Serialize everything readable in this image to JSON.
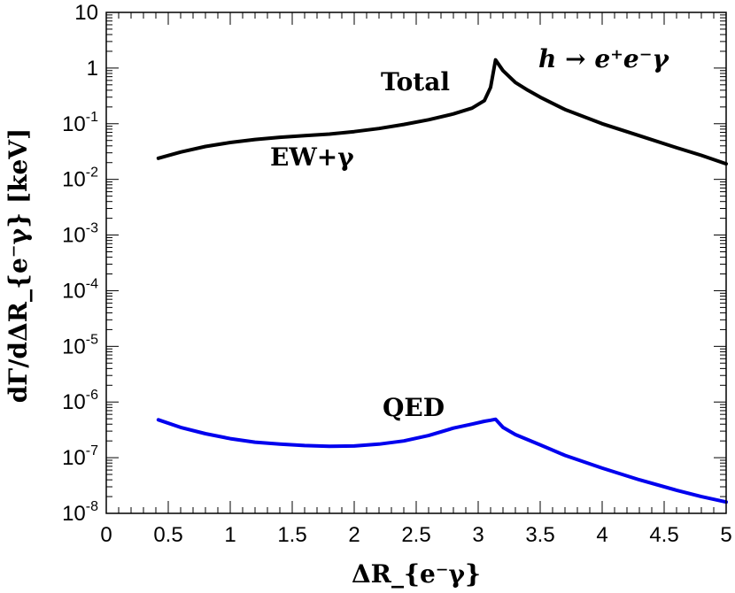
{
  "chart_data": {
    "type": "line",
    "xlabel": "ΔR_{e⁻γ}",
    "ylabel": "dΓ/dΔR_{e⁻γ} [keV]",
    "xlim": [
      0,
      5
    ],
    "ylim": [
      1e-08,
      10
    ],
    "yscale": "log",
    "grid": false,
    "x_ticks": [
      "0",
      "0.5",
      "1",
      "1.5",
      "2",
      "2.5",
      "3",
      "3.5",
      "4",
      "4.5",
      "5"
    ],
    "y_ticks": [
      {
        "base": "10",
        "exp": "-8",
        "value": 1e-08
      },
      {
        "base": "10",
        "exp": "-7",
        "value": 1e-07
      },
      {
        "base": "10",
        "exp": "-6",
        "value": 1e-06
      },
      {
        "base": "10",
        "exp": "-5",
        "value": 1e-05
      },
      {
        "base": "10",
        "exp": "-4",
        "value": 0.0001
      },
      {
        "base": "10",
        "exp": "-3",
        "value": 0.001
      },
      {
        "base": "10",
        "exp": "-2",
        "value": 0.01
      },
      {
        "base": "10",
        "exp": "-1",
        "value": 0.1
      },
      {
        "base": "1",
        "exp": "",
        "value": 1
      },
      {
        "base": "10",
        "exp": "",
        "value": 10
      }
    ],
    "annotations": {
      "process": "h → e⁺e⁻γ",
      "total": "Total",
      "ew": "EW+γ",
      "qed": "QED"
    },
    "series": [
      {
        "name": "",
        "color": "#000000",
        "x": [
          0.42,
          0.6,
          0.8,
          1.0,
          1.2,
          1.4,
          1.6,
          1.8,
          2.0,
          2.2,
          2.4,
          2.6,
          2.8,
          2.95,
          3.05,
          3.1,
          3.14,
          3.2,
          3.3,
          3.4,
          3.5,
          3.7,
          4.0,
          4.3,
          4.6,
          4.8,
          5.0
        ],
        "y": [
          0.024,
          0.031,
          0.039,
          0.046,
          0.052,
          0.057,
          0.061,
          0.065,
          0.072,
          0.082,
          0.097,
          0.118,
          0.15,
          0.19,
          0.26,
          0.45,
          1.4,
          0.9,
          0.55,
          0.4,
          0.3,
          0.18,
          0.1,
          0.061,
          0.037,
          0.027,
          0.019
        ]
      },
      {
        "name": "",
        "color": "#0000ee",
        "x": [
          0.42,
          0.6,
          0.8,
          1.0,
          1.2,
          1.4,
          1.6,
          1.8,
          2.0,
          2.2,
          2.4,
          2.6,
          2.8,
          2.95,
          3.05,
          3.1,
          3.14,
          3.2,
          3.3,
          3.5,
          3.7,
          4.0,
          4.3,
          4.6,
          4.8,
          5.0
        ],
        "y": [
          4.8e-07,
          3.5e-07,
          2.7e-07,
          2.2e-07,
          1.9e-07,
          1.75e-07,
          1.65e-07,
          1.6e-07,
          1.62e-07,
          1.75e-07,
          2e-07,
          2.5e-07,
          3.4e-07,
          4e-07,
          4.5e-07,
          4.7e-07,
          4.9e-07,
          3.5e-07,
          2.6e-07,
          1.7e-07,
          1.1e-07,
          6.5e-08,
          4e-08,
          2.6e-08,
          2e-08,
          1.6e-08
        ]
      }
    ]
  }
}
